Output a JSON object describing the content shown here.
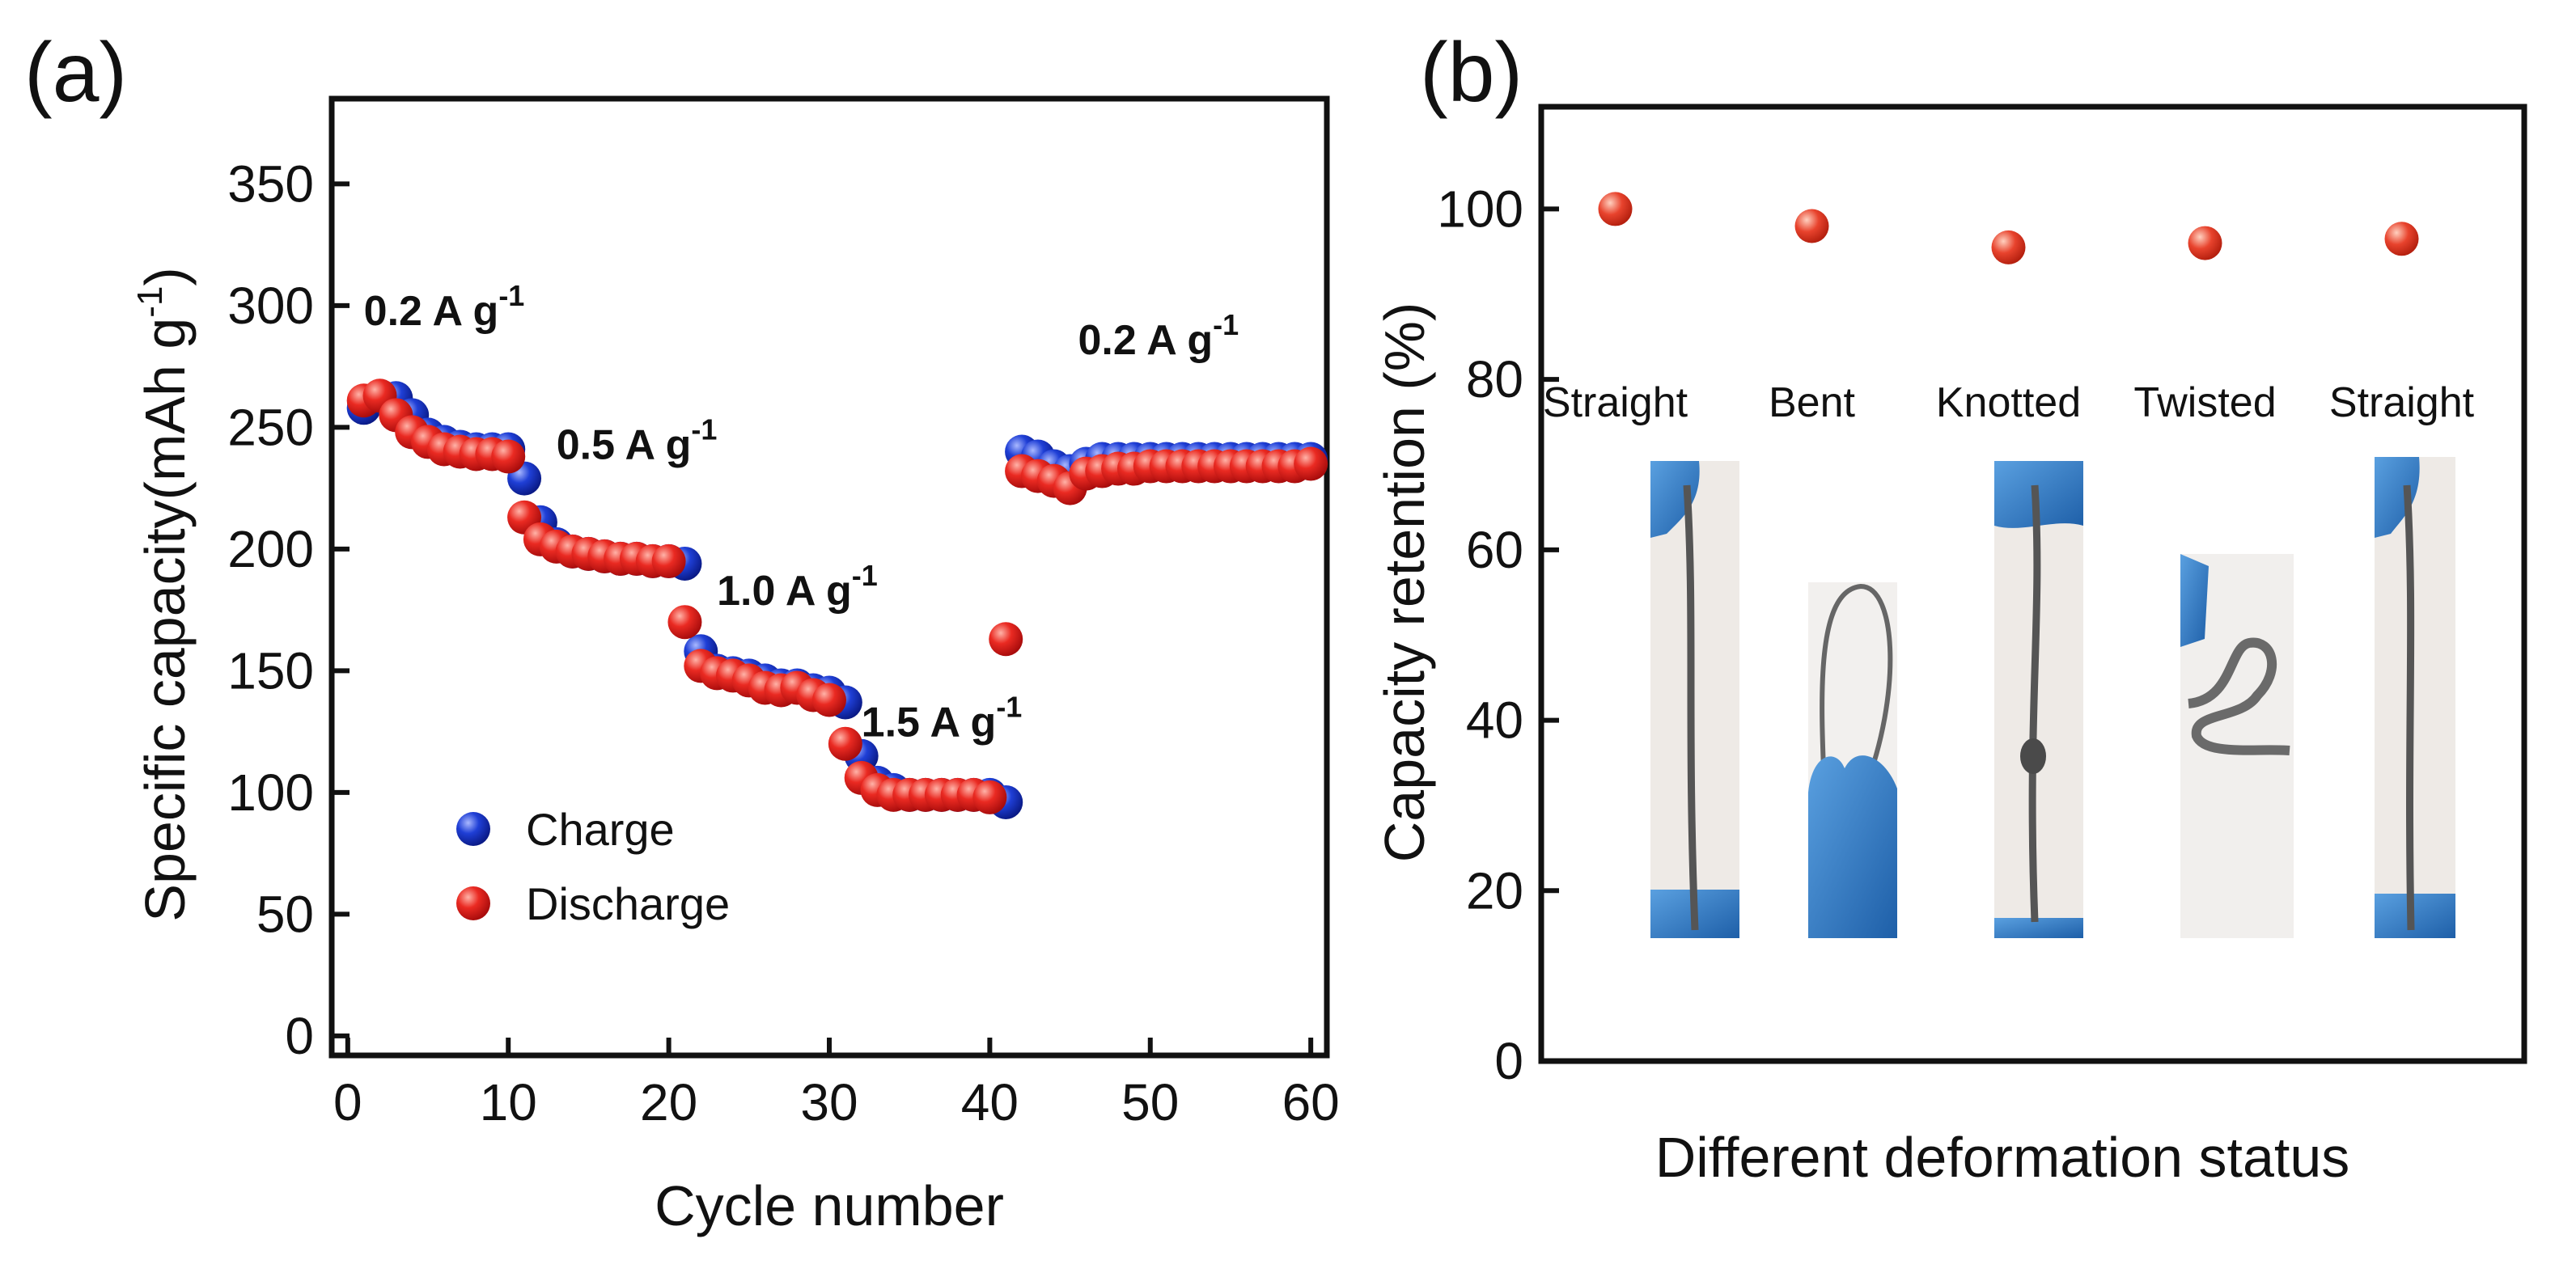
{
  "panels": [
    {
      "label": "(a)",
      "chart_data": {
        "type": "scatter",
        "title": "",
        "xlabel": "Cycle number",
        "ylabel": "Specific capacity(mAh g",
        "ylabel_sup": "-1",
        "ylabel_close": ")",
        "xlim": [
          -1,
          61
        ],
        "ylim": [
          -8,
          385
        ],
        "xticks": [
          0,
          10,
          20,
          30,
          40,
          50,
          60
        ],
        "yticks": [
          0,
          50,
          100,
          150,
          200,
          250,
          300,
          350
        ],
        "legend_position": "bottom-left",
        "series": [
          {
            "name": "Charge",
            "color": "#1a35c8",
            "x": [
              1,
              2,
              3,
              4,
              5,
              6,
              7,
              8,
              9,
              10,
              11,
              12,
              13,
              14,
              15,
              16,
              17,
              18,
              19,
              20,
              21,
              22,
              23,
              24,
              25,
              26,
              27,
              28,
              29,
              30,
              31,
              32,
              33,
              34,
              35,
              36,
              37,
              38,
              39,
              40,
              41,
              42,
              43,
              44,
              45,
              46,
              47,
              48,
              49,
              50,
              51,
              52,
              53,
              54,
              55,
              56,
              57,
              58,
              59,
              60
            ],
            "y": [
              258,
              262,
              262,
              255,
              247,
              244,
              242,
              241,
              241,
              241,
              229,
              211,
              202,
              199,
              198,
              197,
              196,
              196,
              195,
              195,
              194,
              158,
              150,
              149,
              148,
              146,
              144,
              144,
              142,
              141,
              137,
              115,
              104,
              101,
              99,
              99,
              99,
              99,
              99,
              99,
              96,
              240,
              238,
              234,
              232,
              235,
              237,
              237,
              237,
              237,
              237,
              237,
              237,
              237,
              237,
              237,
              237,
              237,
              237,
              237
            ]
          },
          {
            "name": "Discharge",
            "color": "#e52020",
            "x": [
              1,
              2,
              3,
              4,
              5,
              6,
              7,
              8,
              9,
              10,
              11,
              12,
              13,
              14,
              15,
              16,
              17,
              18,
              19,
              20,
              21,
              22,
              23,
              24,
              25,
              26,
              27,
              28,
              29,
              30,
              31,
              32,
              33,
              34,
              35,
              36,
              37,
              38,
              39,
              40,
              41,
              42,
              43,
              44,
              45,
              46,
              47,
              48,
              49,
              50,
              51,
              52,
              53,
              54,
              55,
              56,
              57,
              58,
              59,
              60
            ],
            "y": [
              261,
              263,
              255,
              248,
              244,
              241,
              240,
              239,
              239,
              238,
              213,
              204,
              201,
              199,
              198,
              197,
              196,
              196,
              195,
              195,
              170,
              152,
              149,
              148,
              146,
              143,
              142,
              143,
              140,
              138,
              120,
              106,
              101,
              99,
              99,
              99,
              99,
              99,
              99,
              98,
              163,
              232,
              230,
              228,
              225,
              231,
              232,
              233,
              233,
              234,
              234,
              234,
              234,
              234,
              234,
              234,
              234,
              234,
              234,
              235
            ]
          }
        ],
        "annotations": [
          {
            "text": "0.2 A g",
            "sup": "-1",
            "x": 1.0,
            "y": 292
          },
          {
            "text": "0.5 A g",
            "sup": "-1",
            "x": 13.0,
            "y": 237
          },
          {
            "text": "1.0 A g",
            "sup": "-1",
            "x": 23.0,
            "y": 177
          },
          {
            "text": "1.5 A g",
            "sup": "-1",
            "x": 32.0,
            "y": 123
          },
          {
            "text": "0.2 A g",
            "sup": "-1",
            "x": 45.5,
            "y": 280
          }
        ]
      }
    },
    {
      "label": "(b)",
      "chart_data": {
        "type": "scatter",
        "title": "",
        "xlabel": "Different deformation status",
        "ylabel": "Capacity retention (%)",
        "ylim": [
          0,
          112
        ],
        "yticks": [
          0,
          20,
          40,
          60,
          80,
          100
        ],
        "categories": [
          "Straight",
          "Bent",
          "Knotted",
          "Twisted",
          "Straight"
        ],
        "series": [
          {
            "name": "Capacity retention",
            "color": "#e53b2a",
            "values": [
              100,
              98,
              95.5,
              96,
              96.5
            ]
          }
        ],
        "photos": [
          "straight-fiber-photo",
          "bent-fiber-photo",
          "knotted-fiber-photo",
          "twisted-fiber-photo",
          "straight-fiber-photo"
        ]
      }
    }
  ]
}
